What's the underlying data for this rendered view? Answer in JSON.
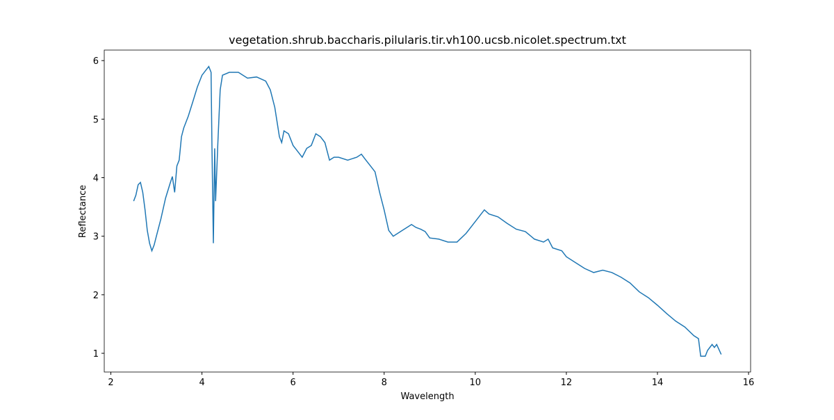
{
  "chart_data": {
    "type": "line",
    "title": "vegetation.shrub.baccharis.pilularis.tir.vh100.ucsb.nicolet.spectrum.txt",
    "xlabel": "Wavelength",
    "ylabel": "Reflectance",
    "color": "#1f77b4",
    "x": [
      2.5,
      2.55,
      2.6,
      2.65,
      2.7,
      2.75,
      2.8,
      2.85,
      2.9,
      2.95,
      3.0,
      3.1,
      3.2,
      3.3,
      3.35,
      3.4,
      3.45,
      3.5,
      3.55,
      3.6,
      3.7,
      3.8,
      3.9,
      4.0,
      4.1,
      4.15,
      4.2,
      4.22,
      4.25,
      4.28,
      4.3,
      4.35,
      4.4,
      4.45,
      4.6,
      4.8,
      5.0,
      5.2,
      5.4,
      5.5,
      5.6,
      5.65,
      5.7,
      5.75,
      5.8,
      5.9,
      6.0,
      6.1,
      6.2,
      6.3,
      6.4,
      6.5,
      6.6,
      6.7,
      6.8,
      6.9,
      7.0,
      7.2,
      7.4,
      7.5,
      7.6,
      7.7,
      7.8,
      7.9,
      8.0,
      8.1,
      8.2,
      8.3,
      8.4,
      8.5,
      8.6,
      8.7,
      8.8,
      8.9,
      9.0,
      9.2,
      9.4,
      9.6,
      9.8,
      10.0,
      10.1,
      10.2,
      10.3,
      10.5,
      10.7,
      10.9,
      11.1,
      11.3,
      11.5,
      11.6,
      11.7,
      11.9,
      12.0,
      12.2,
      12.4,
      12.6,
      12.8,
      13.0,
      13.2,
      13.4,
      13.6,
      13.8,
      14.0,
      14.2,
      14.4,
      14.6,
      14.8,
      14.9,
      14.95,
      15.05,
      15.1,
      15.2,
      15.25,
      15.3,
      15.4
    ],
    "values": [
      3.6,
      3.7,
      3.88,
      3.92,
      3.75,
      3.45,
      3.1,
      2.88,
      2.75,
      2.85,
      3.0,
      3.3,
      3.65,
      3.9,
      4.02,
      3.75,
      4.2,
      4.3,
      4.7,
      4.85,
      5.05,
      5.3,
      5.55,
      5.75,
      5.85,
      5.9,
      5.8,
      4.5,
      2.88,
      4.5,
      3.6,
      4.6,
      5.5,
      5.75,
      5.8,
      5.8,
      5.7,
      5.72,
      5.65,
      5.5,
      5.2,
      4.95,
      4.7,
      4.6,
      4.8,
      4.75,
      4.55,
      4.45,
      4.35,
      4.5,
      4.55,
      4.75,
      4.7,
      4.6,
      4.3,
      4.35,
      4.35,
      4.3,
      4.35,
      4.4,
      4.3,
      4.2,
      4.1,
      3.75,
      3.45,
      3.1,
      3.0,
      3.05,
      3.1,
      3.15,
      3.2,
      3.15,
      3.12,
      3.08,
      2.97,
      2.95,
      2.9,
      2.9,
      3.05,
      3.25,
      3.35,
      3.45,
      3.38,
      3.33,
      3.22,
      3.12,
      3.08,
      2.95,
      2.9,
      2.95,
      2.8,
      2.75,
      2.65,
      2.55,
      2.45,
      2.38,
      2.42,
      2.38,
      2.3,
      2.2,
      2.05,
      1.95,
      1.82,
      1.68,
      1.55,
      1.45,
      1.3,
      1.25,
      0.95,
      0.95,
      1.05,
      1.15,
      1.1,
      1.15,
      0.98
    ],
    "xlim": [
      1.855,
      16.045
    ],
    "ylim": [
      0.68,
      6.18
    ],
    "xticks": [
      2,
      4,
      6,
      8,
      10,
      12,
      14,
      16
    ],
    "yticks": [
      1,
      2,
      3,
      4,
      5,
      6
    ]
  }
}
